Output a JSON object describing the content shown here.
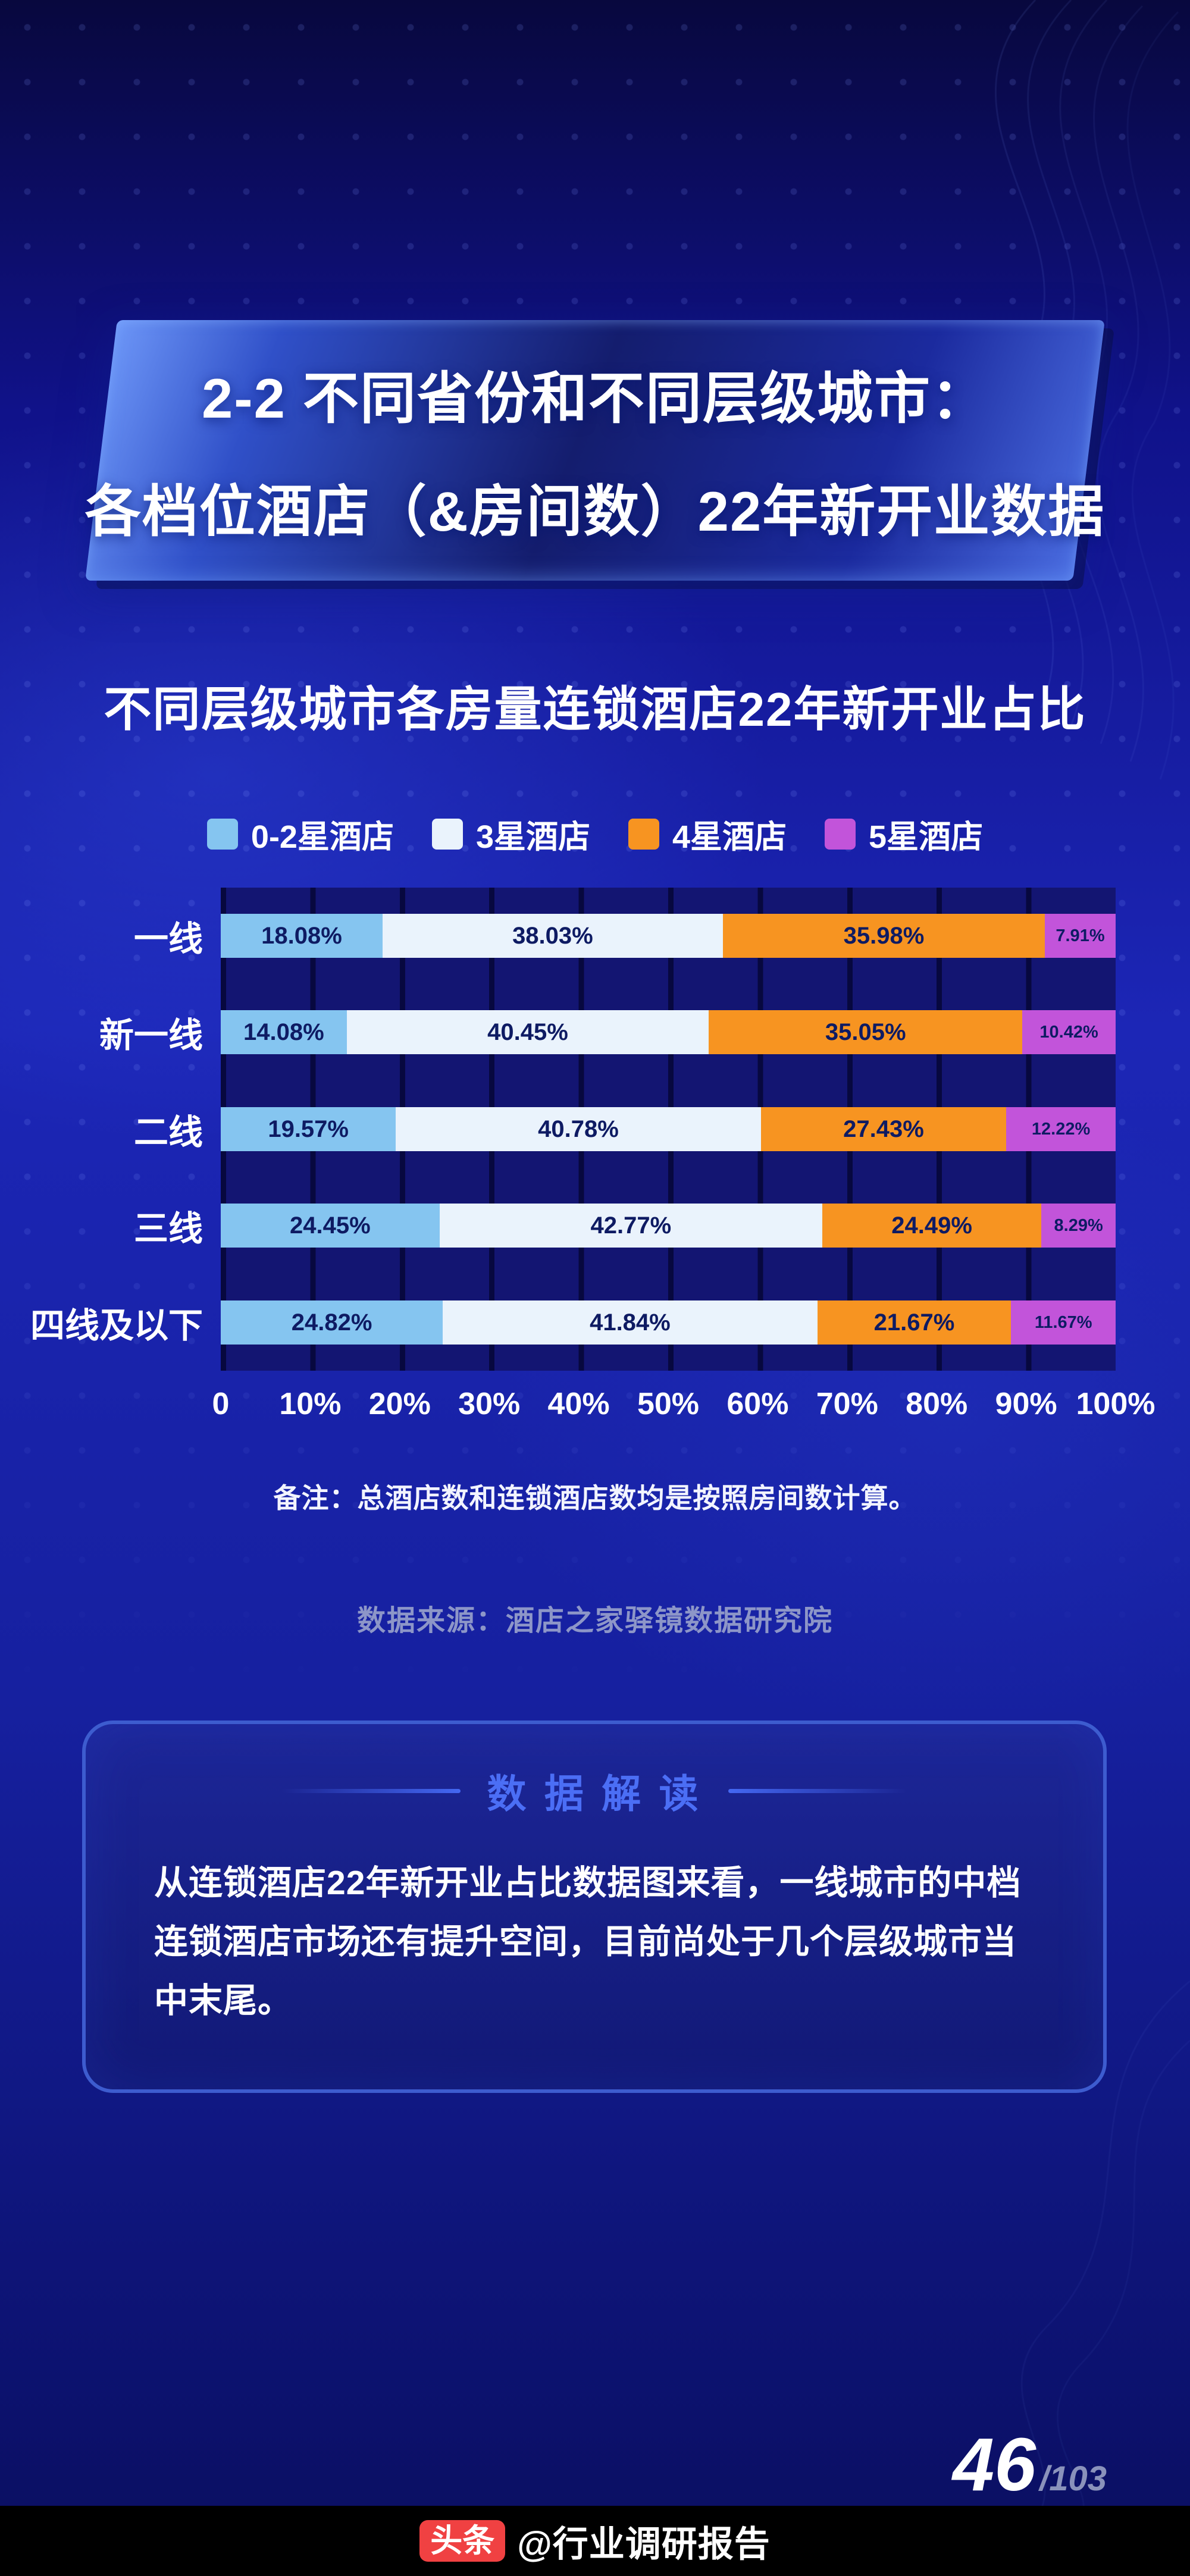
{
  "banner": {
    "line1": "2-2 不同省份和不同层级城市：",
    "line2": "各档位酒店（&房间数）22年新开业数据"
  },
  "chart_title": "不同层级城市各房量连锁酒店22年新开业占比",
  "chart_data": {
    "type": "bar",
    "orientation": "horizontal",
    "stacked": true,
    "title": "不同层级城市各房量连锁酒店22年新开业占比",
    "categories": [
      "一线",
      "新一线",
      "二线",
      "三线",
      "四线及以下"
    ],
    "series": [
      {
        "name": "0-2星酒店",
        "color": "#85c5f0",
        "values": [
          18.08,
          14.08,
          19.57,
          24.45,
          24.82
        ]
      },
      {
        "name": "3星酒店",
        "color": "#eaf3fc",
        "values": [
          38.03,
          40.45,
          40.78,
          42.77,
          41.84
        ]
      },
      {
        "name": "4星酒店",
        "color": "#f79421",
        "values": [
          35.98,
          35.05,
          27.43,
          24.49,
          21.67
        ]
      },
      {
        "name": "5星酒店",
        "color": "#c254da",
        "values": [
          7.91,
          10.42,
          12.22,
          8.29,
          11.67
        ]
      }
    ],
    "x_ticks": [
      "0",
      "10%",
      "20%",
      "30%",
      "40%",
      "50%",
      "60%",
      "70%",
      "80%",
      "90%",
      "100%"
    ],
    "xlim": [
      0,
      100
    ],
    "value_suffix": "%",
    "legend_position": "top",
    "grid": "vertical"
  },
  "note": "备注：总酒店数和连锁酒店数均是按照房间数计算。",
  "source": "数据来源：酒店之家驿镜数据研究院",
  "insight": {
    "title": "数 据 解 读",
    "body": "从连锁酒店22年新开业占比数据图来看，一线城市的中档连锁酒店市场还有提升空间，目前尚处于几个层级城市当中末尾。"
  },
  "page_number": {
    "current": "46",
    "total": "/103"
  },
  "footer": {
    "logo": "头条",
    "handle": "@行业调研报告"
  }
}
